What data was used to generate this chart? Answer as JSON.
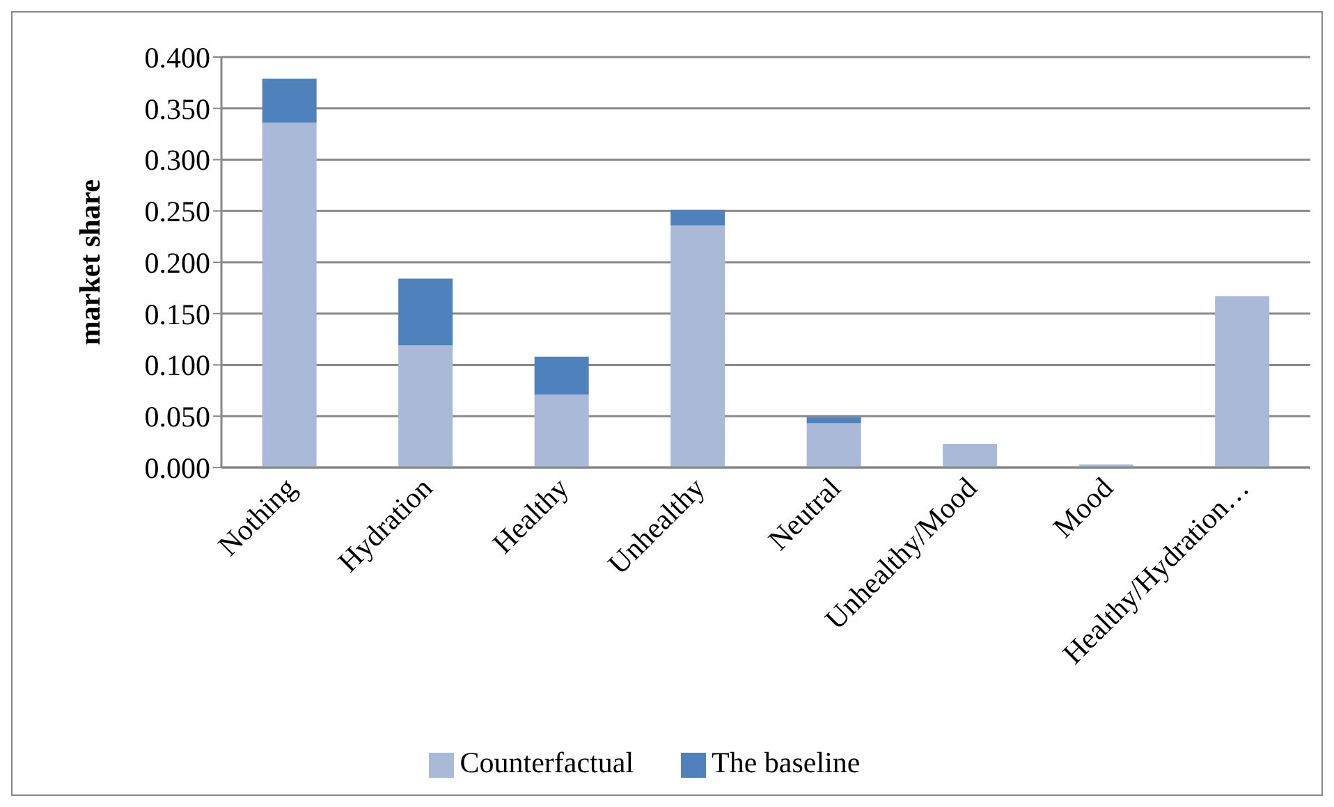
{
  "chart_data": {
    "type": "bar",
    "ylabel": "market share",
    "categories": [
      "Nothing",
      "Hydration",
      "Healthy",
      "Unhealthy",
      "Neutral",
      "Unhealthy/Mood",
      "Mood",
      "Healthy/Hydration…"
    ],
    "series": [
      {
        "name": "Counterfactual",
        "color": "#aab9d7",
        "values": [
          0.336,
          0.119,
          0.071,
          0.236,
          0.043,
          0.023,
          0.003,
          0.167
        ]
      },
      {
        "name": "The baseline",
        "color": "#4f81bd",
        "values": [
          0.043,
          0.065,
          0.037,
          0.015,
          0.006,
          0,
          0,
          0
        ]
      }
    ],
    "stacked": true,
    "ylim": [
      0,
      0.4
    ],
    "yticks": [
      {
        "value": 0,
        "label": "0.000"
      },
      {
        "value": 0.05,
        "label": "0.050"
      },
      {
        "value": 0.1,
        "label": "0.100"
      },
      {
        "value": 0.15,
        "label": "0.150"
      },
      {
        "value": 0.2,
        "label": "0.200"
      },
      {
        "value": 0.25,
        "label": "0.250"
      },
      {
        "value": 0.3,
        "label": "0.300"
      },
      {
        "value": 0.35,
        "label": "0.350"
      },
      {
        "value": 0.4,
        "label": "0.400"
      }
    ],
    "grid": "y",
    "legend": "bottom"
  }
}
